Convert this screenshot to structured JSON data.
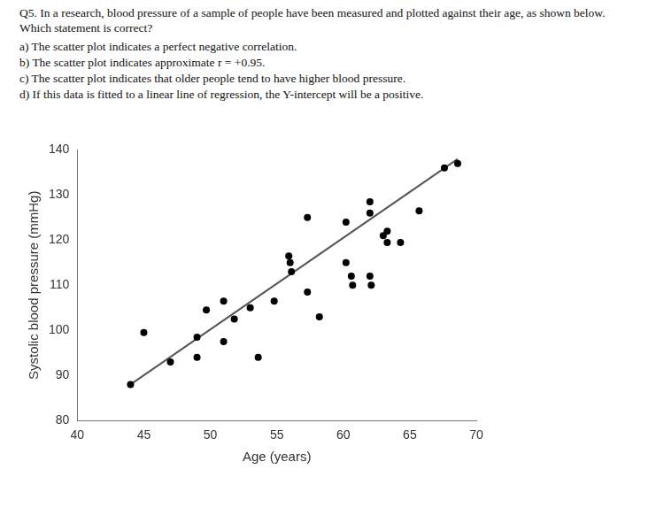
{
  "question": "Q5. In a research, blood pressure of a sample of people have been measured and plotted against their age, as shown below. Which statement is correct?",
  "options": [
    "a) The scatter plot indicates a perfect negative correlation.",
    "b) The scatter plot indicates approximate r = +0.95.",
    "c) The scatter plot indicates that older people tend to have higher blood pressure.",
    "d) If this data is fitted to a linear line of regression, the Y-intercept will be a positive."
  ],
  "chart_data": {
    "type": "scatter",
    "x_label": "Age (years)",
    "y_label": "Systolic blood pressure (mmHg)",
    "xlim": [
      40,
      70
    ],
    "xticks": [
      40,
      45,
      50,
      55,
      60,
      65,
      70
    ],
    "ylim": [
      80,
      140
    ],
    "yticks": [
      80,
      90,
      100,
      110,
      120,
      130,
      140
    ],
    "grid": false,
    "series": [
      {
        "type": "scatter",
        "marker": "circle",
        "color": "#000000",
        "x": [
          44,
          45,
          47,
          49,
          49,
          49.7,
          51,
          51,
          51.8,
          53,
          53.6,
          54.8,
          55.9,
          56,
          56.1,
          57.3,
          57.3,
          58.2,
          60.2,
          60.2,
          60.6,
          60.7,
          62,
          62,
          62,
          62.1,
          63,
          63.3,
          63.3,
          64.3,
          65.7,
          67.6,
          68.6
        ],
        "values": [
          88,
          99.5,
          93,
          98.5,
          94,
          104.5,
          106.5,
          97.5,
          102.5,
          105,
          94,
          106.5,
          116.5,
          115,
          113,
          125,
          108.5,
          103,
          124,
          115,
          112,
          110,
          128.5,
          126,
          112,
          110,
          121,
          122,
          119.5,
          119.5,
          126.5,
          136,
          137
        ]
      },
      {
        "type": "line",
        "line_style": "solid",
        "color": "#555555",
        "x": [
          44,
          68.6
        ],
        "values": [
          88,
          138
        ]
      }
    ]
  }
}
